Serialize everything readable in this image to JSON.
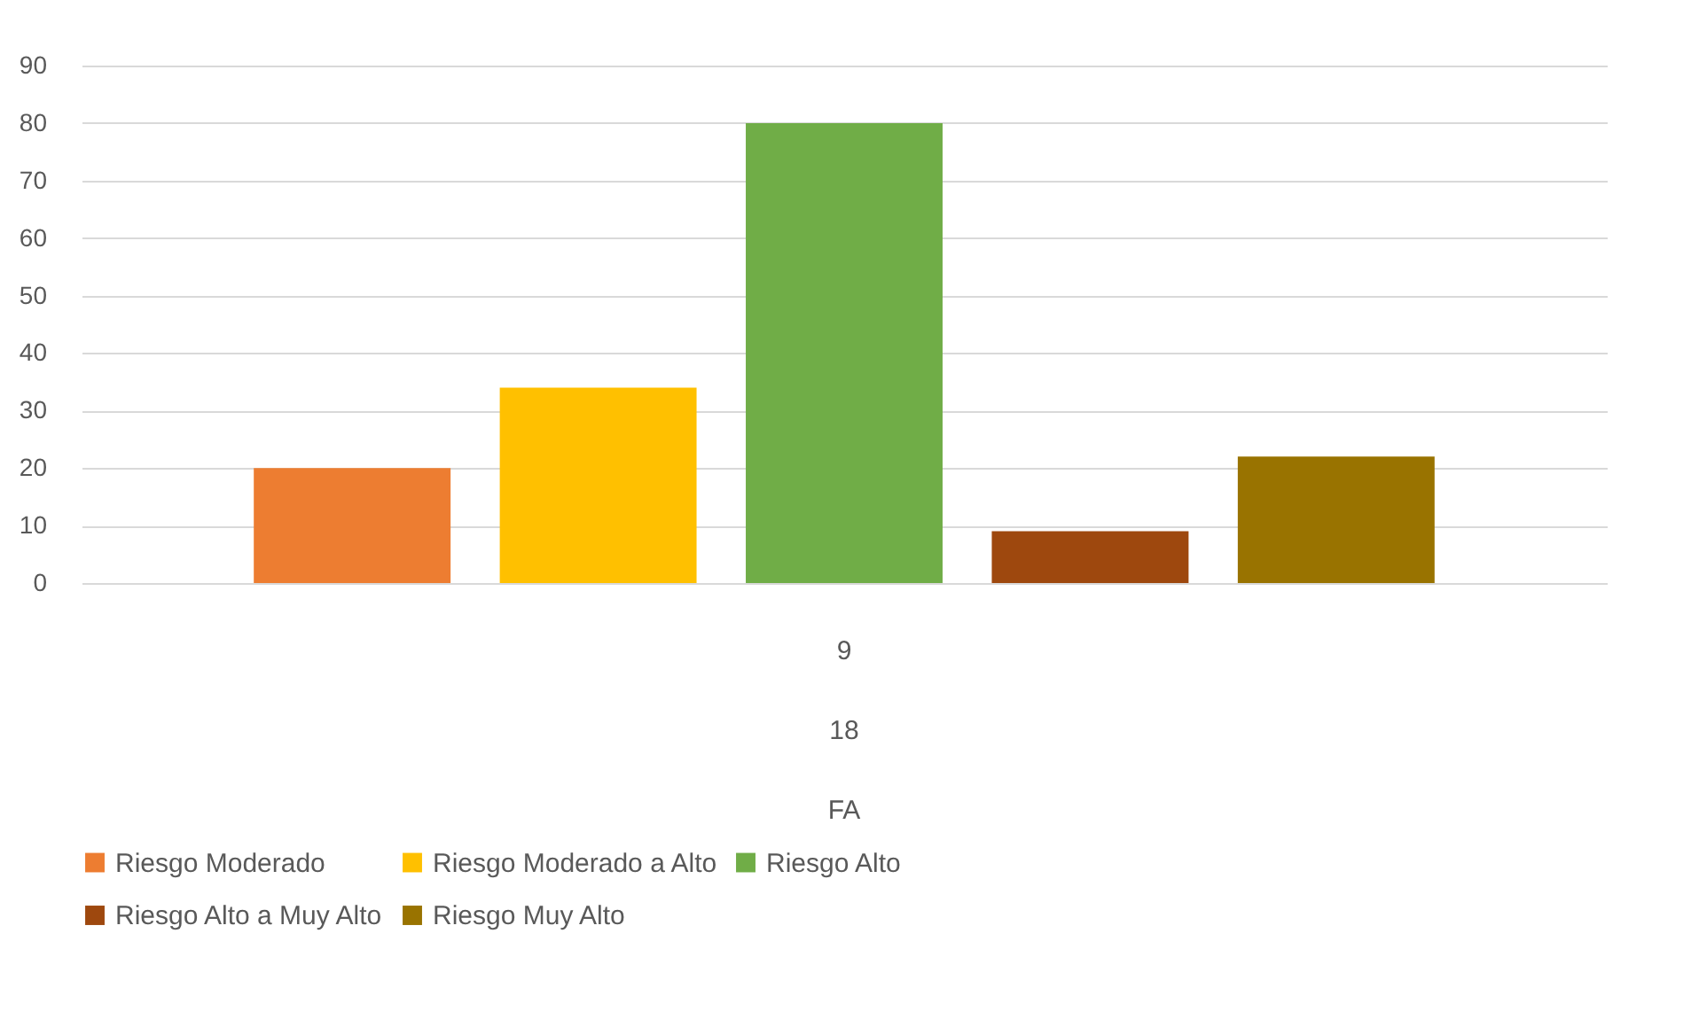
{
  "chart_data": {
    "type": "bar",
    "categories": [
      "9"
    ],
    "series": [
      {
        "name": "Riesgo Moderado",
        "color": "#ed7d31",
        "values": [
          20
        ]
      },
      {
        "name": "Riesgo Moderado a Alto",
        "color": "#ffc000",
        "values": [
          34
        ]
      },
      {
        "name": "Riesgo Alto",
        "color": "#70ad47",
        "values": [
          80
        ]
      },
      {
        "name": "Riesgo Alto a Muy Alto",
        "color": "#9e480e",
        "values": [
          9
        ]
      },
      {
        "name": "Riesgo Muy Alto",
        "color": "#997300",
        "values": [
          22
        ]
      }
    ],
    "annotations": [
      "18",
      "FA"
    ],
    "ylim": [
      0,
      90
    ],
    "yticks": [
      0,
      10,
      20,
      30,
      40,
      50,
      60,
      70,
      80,
      90
    ],
    "grid": "y",
    "legend": "bottom"
  }
}
